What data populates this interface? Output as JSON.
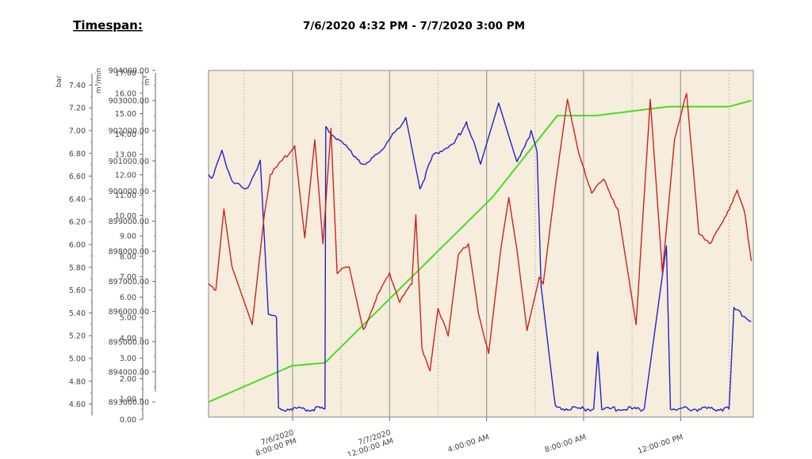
{
  "header": {
    "timespan_label": "Timespan:",
    "timespan_value": "7/6/2020 4:32 PM - 7/7/2020 3:00 PM"
  },
  "colors": {
    "plot_background": "#f6eddc",
    "pressure_series": "#cc2222",
    "flow_series": "#2222cc",
    "volume_series": "#44dd22"
  },
  "chart_data": {
    "type": "line",
    "grid": "vertical",
    "axes": {
      "pressure": {
        "unit": "bar",
        "range": [
          4.5,
          7.5
        ],
        "ticks": [
          "7.40",
          "7.20",
          "7.00",
          "6.80",
          "6.60",
          "6.40",
          "6.20",
          "6.00",
          "5.80",
          "5.60",
          "5.40",
          "5.20",
          "5.00",
          "4.80",
          "4.60"
        ]
      },
      "flow": {
        "unit": "m³/min",
        "range": [
          0,
          17
        ],
        "ticks": [
          "17.00",
          "16.00",
          "15.00",
          "14.00",
          "13.00",
          "12.00",
          "11.00",
          "10.00",
          "9.00",
          "8.00",
          "7.00",
          "6.00",
          "5.00",
          "4.00",
          "3.00",
          "2.00",
          "1.00",
          "0.00"
        ]
      },
      "volume": {
        "unit": "m³",
        "range": [
          892500,
          904000
        ],
        "ticks": [
          "904000.00",
          "903000.00",
          "902000.00",
          "901000.00",
          "900000.00",
          "899000.00",
          "898000.00",
          "897000.00",
          "896000.00",
          "895000.00",
          "894000.00",
          "893000.00"
        ]
      }
    },
    "x_range": [
      "7/6/2020 4:32 PM",
      "7/7/2020 3:00 PM"
    ],
    "x_ticks": [
      {
        "date": "7/6/2020",
        "time": "8:00:00 PM"
      },
      {
        "date": "7/7/2020",
        "time": "12:00:00 AM"
      },
      {
        "date": "",
        "time": "4:00:00 AM"
      },
      {
        "date": "",
        "time": "8:00:00 AM"
      },
      {
        "date": "",
        "time": "12:00:00 PM"
      }
    ],
    "series": [
      {
        "axis": "volume",
        "color": "#44dd22",
        "points": [
          [
            "7/6/2020 4:32 PM",
            893000
          ],
          [
            "7/6/2020 7:58 PM",
            894200
          ],
          [
            "7/6/2020 9:20 PM",
            894300
          ],
          [
            "7/7/2020 4:15 AM",
            899800
          ],
          [
            "7/7/2020 6:55 AM",
            902500
          ],
          [
            "7/7/2020 8:30 AM",
            902500
          ],
          [
            "7/7/2020 11:30 AM",
            902800
          ],
          [
            "7/7/2020 2:00 PM",
            902800
          ],
          [
            "7/7/2020 2:55 PM",
            903000
          ]
        ]
      },
      {
        "axis": "flow",
        "color": "#2222cc",
        "points": [
          [
            "7/6/2020 4:32 PM",
            12.0
          ],
          [
            "7/6/2020 4:40 PM",
            11.6
          ],
          [
            "7/6/2020 5:05 PM",
            13.0
          ],
          [
            "7/6/2020 5:30 PM",
            11.6
          ],
          [
            "7/6/2020 6:05 PM",
            11.1
          ],
          [
            "7/6/2020 6:40 PM",
            12.6
          ],
          [
            "7/6/2020 7:00 PM",
            5.0
          ],
          [
            "7/6/2020 7:20 PM",
            4.9
          ],
          [
            "7/6/2020 7:25 PM",
            0.4
          ],
          [
            "7/6/2020 8:30 PM",
            0.4
          ],
          [
            "7/6/2020 9:20 PM",
            0.4
          ],
          [
            "7/6/2020 9:22 PM",
            14.2
          ],
          [
            "7/6/2020 10:00 PM",
            13.5
          ],
          [
            "7/6/2020 11:00 PM",
            12.3
          ],
          [
            "7/7/2020 12:00 AM",
            13.6
          ],
          [
            "7/7/2020 12:40 AM",
            14.7
          ],
          [
            "7/7/2020 1:15 AM",
            11.2
          ],
          [
            "7/7/2020 1:50 AM",
            12.9
          ],
          [
            "7/7/2020 2:40 AM",
            13.4
          ],
          [
            "7/7/2020 3:10 AM",
            14.5
          ],
          [
            "7/7/2020 3:45 AM",
            12.4
          ],
          [
            "7/7/2020 4:30 AM",
            15.4
          ],
          [
            "7/7/2020 5:15 AM",
            12.5
          ],
          [
            "7/7/2020 5:50 AM",
            14.0
          ],
          [
            "7/7/2020 6:05 AM",
            13.0
          ],
          [
            "7/7/2020 6:15 AM",
            6.4
          ],
          [
            "7/7/2020 6:50 AM",
            0.5
          ],
          [
            "7/7/2020 7:25 AM",
            0.4
          ],
          [
            "7/7/2020 8:25 AM",
            0.4
          ],
          [
            "7/7/2020 8:35 AM",
            3.2
          ],
          [
            "7/7/2020 8:45 AM",
            0.4
          ],
          [
            "7/7/2020 10:30 AM",
            0.4
          ],
          [
            "7/7/2020 11:25 AM",
            8.4
          ],
          [
            "7/7/2020 11:35 AM",
            0.4
          ],
          [
            "7/7/2020 2:00 PM",
            0.4
          ],
          [
            "7/7/2020 2:12 PM",
            5.3
          ],
          [
            "7/7/2020 2:55 PM",
            4.7
          ]
        ]
      },
      {
        "axis": "pressure",
        "color": "#cc2222",
        "points": [
          [
            "7/6/2020 4:32 PM",
            5.65
          ],
          [
            "7/6/2020 4:50 PM",
            5.6
          ],
          [
            "7/6/2020 5:10 PM",
            6.3
          ],
          [
            "7/6/2020 5:30 PM",
            5.8
          ],
          [
            "7/6/2020 6:20 PM",
            5.3
          ],
          [
            "7/6/2020 6:50 PM",
            6.25
          ],
          [
            "7/6/2020 7:05 PM",
            6.6
          ],
          [
            "7/6/2020 7:30 PM",
            6.7
          ],
          [
            "7/6/2020 8:05 PM",
            6.85
          ],
          [
            "7/6/2020 8:30 PM",
            6.05
          ],
          [
            "7/6/2020 8:55 PM",
            6.9
          ],
          [
            "7/6/2020 9:15 PM",
            6.0
          ],
          [
            "7/6/2020 9:35 PM",
            7.0
          ],
          [
            "7/6/2020 9:50 PM",
            5.75
          ],
          [
            "7/6/2020 10:20 PM",
            5.8
          ],
          [
            "7/6/2020 10:55 PM",
            5.25
          ],
          [
            "7/6/2020 11:30 PM",
            5.55
          ],
          [
            "7/7/2020 12:00 AM",
            5.75
          ],
          [
            "7/7/2020 12:25 AM",
            5.5
          ],
          [
            "7/7/2020 12:55 AM",
            5.65
          ],
          [
            "7/7/2020 1:05 AM",
            6.25
          ],
          [
            "7/7/2020 1:20 AM",
            5.1
          ],
          [
            "7/7/2020 1:40 AM",
            4.9
          ],
          [
            "7/7/2020 2:00 AM",
            5.45
          ],
          [
            "7/7/2020 2:25 AM",
            5.2
          ],
          [
            "7/7/2020 2:50 AM",
            5.9
          ],
          [
            "7/7/2020 3:15 AM",
            6.0
          ],
          [
            "7/7/2020 3:40 AM",
            5.4
          ],
          [
            "7/7/2020 4:05 AM",
            5.05
          ],
          [
            "7/7/2020 4:35 AM",
            5.95
          ],
          [
            "7/7/2020 4:55 AM",
            6.4
          ],
          [
            "7/7/2020 5:15 AM",
            5.95
          ],
          [
            "7/7/2020 5:40 AM",
            5.25
          ],
          [
            "7/7/2020 6:10 AM",
            5.7
          ],
          [
            "7/7/2020 6:20 AM",
            5.65
          ],
          [
            "7/7/2020 6:50 AM",
            6.5
          ],
          [
            "7/7/2020 7:20 AM",
            7.25
          ],
          [
            "7/7/2020 7:50 AM",
            6.75
          ],
          [
            "7/7/2020 8:20 AM",
            6.45
          ],
          [
            "7/7/2020 8:50 AM",
            6.55
          ],
          [
            "7/7/2020 9:25 AM",
            6.3
          ],
          [
            "7/7/2020 10:10 AM",
            5.3
          ],
          [
            "7/7/2020 10:45 AM",
            7.25
          ],
          [
            "7/7/2020 11:15 AM",
            5.75
          ],
          [
            "7/7/2020 11:45 AM",
            6.9
          ],
          [
            "7/7/2020 12:15 PM",
            7.3
          ],
          [
            "7/7/2020 12:45 PM",
            6.1
          ],
          [
            "7/7/2020 1:15 PM",
            6.0
          ],
          [
            "7/7/2020 1:45 PM",
            6.2
          ],
          [
            "7/7/2020 2:20 PM",
            6.45
          ],
          [
            "7/7/2020 2:40 PM",
            6.25
          ],
          [
            "7/7/2020 2:55 PM",
            5.85
          ]
        ]
      }
    ]
  }
}
